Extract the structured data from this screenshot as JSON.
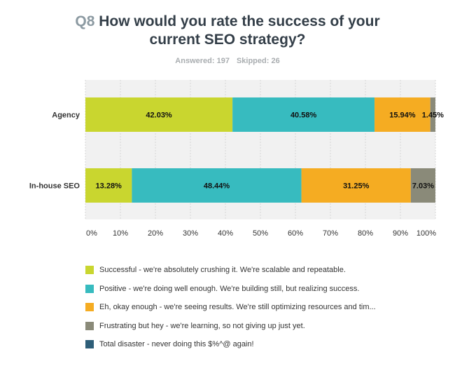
{
  "question": {
    "number": "Q8",
    "title_line1": "How would you rate the success of your",
    "title_line2": "current SEO strategy?",
    "answered": "Answered: 197",
    "skipped": "Skipped: 26"
  },
  "chart_data": {
    "type": "bar",
    "orientation": "horizontal",
    "stacked": true,
    "categories": [
      "Agency",
      "In-house SEO"
    ],
    "series": [
      {
        "name": "Successful - we're absolutely crushing it. We're scalable and repeatable.",
        "color": "#c9d62f",
        "values": [
          42.03,
          13.28
        ],
        "labels": [
          "42.03%",
          "13.28%"
        ]
      },
      {
        "name": "Positive - we're doing well enough. We're building still, but realizing success.",
        "color": "#37bbbf",
        "values": [
          40.58,
          48.44
        ],
        "labels": [
          "40.58%",
          "48.44%"
        ]
      },
      {
        "name": "Eh, okay enough - we're seeing results. We're still optimizing resources and tim...",
        "color": "#f5ac22",
        "values": [
          15.94,
          31.25
        ],
        "labels": [
          "15.94%",
          "31.25%"
        ]
      },
      {
        "name": "Frustrating but hey - we're learning, so not giving up just yet.",
        "color": "#8a8a79",
        "values": [
          1.45,
          7.03
        ],
        "labels": [
          "1.45%",
          "7.03%"
        ]
      },
      {
        "name": "Total disaster - never doing this $%^@ again!",
        "color": "#2e5e78",
        "values": [
          0,
          0
        ],
        "labels": [
          "",
          ""
        ]
      }
    ],
    "xlim": [
      0,
      100
    ],
    "xticks": [
      "0%",
      "10%",
      "20%",
      "30%",
      "40%",
      "50%",
      "60%",
      "70%",
      "80%",
      "90%",
      "100%"
    ],
    "grid": true,
    "legend": "bottom"
  }
}
